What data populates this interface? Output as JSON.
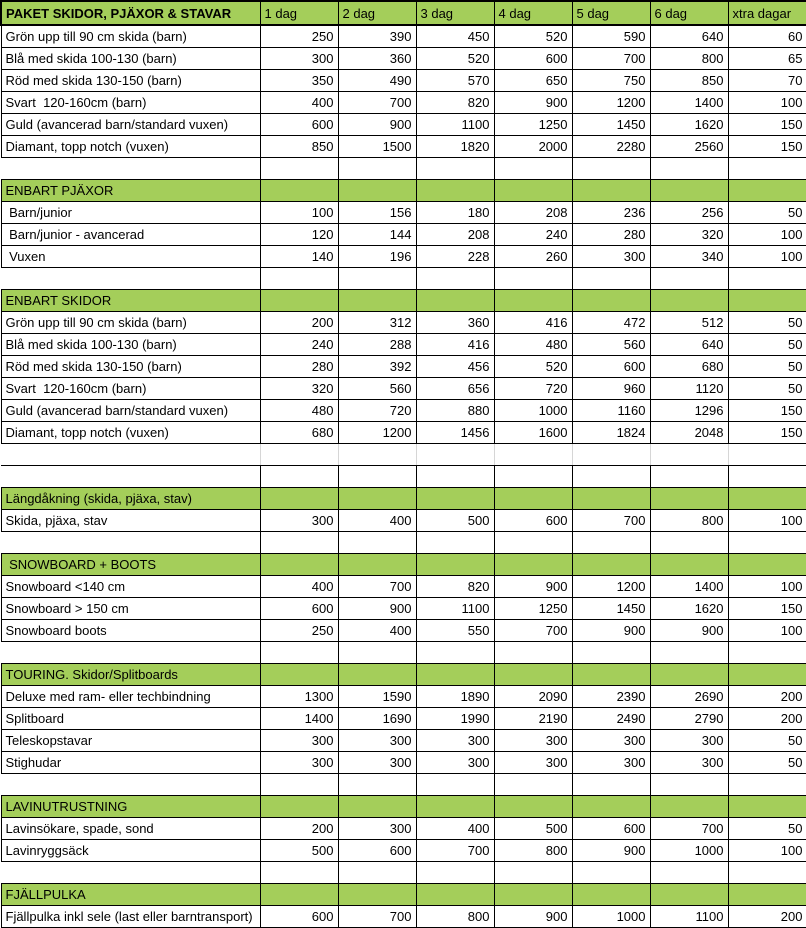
{
  "colors": {
    "section_green": "#a4ce5a",
    "gridline_gray": "#d6d6d6",
    "border_black": "#000000",
    "background": "#ffffff"
  },
  "header": {
    "title": "PAKET SKIDOR, PJÄXOR & STAVAR",
    "day_columns": [
      "1 dag",
      "2 dag",
      "3 dag",
      "4 dag",
      "5 dag",
      "6 dag",
      "xtra dagar"
    ]
  },
  "rows": [
    {
      "type": "item",
      "label": "Grön upp till 90 cm skida (barn)",
      "values": [
        "250",
        "390",
        "450",
        "520",
        "590",
        "640",
        "60"
      ]
    },
    {
      "type": "item",
      "label": "Blå med skida 100-130 (barn)",
      "values": [
        "300",
        "360",
        "520",
        "600",
        "700",
        "800",
        "65"
      ]
    },
    {
      "type": "item",
      "label": "Röd med skida 130-150 (barn)",
      "values": [
        "350",
        "490",
        "570",
        "650",
        "750",
        "850",
        "70"
      ]
    },
    {
      "type": "item",
      "label": "Svart  120-160cm (barn)",
      "values": [
        "400",
        "700",
        "820",
        "900",
        "1200",
        "1400",
        "100"
      ]
    },
    {
      "type": "item",
      "label": "Guld (avancerad barn/standard vuxen)",
      "values": [
        "600",
        "900",
        "1100",
        "1250",
        "1450",
        "1620",
        "150"
      ]
    },
    {
      "type": "item",
      "label": "Diamant, topp notch (vuxen)",
      "values": [
        "850",
        "1500",
        "1820",
        "2000",
        "2280",
        "2560",
        "150"
      ]
    },
    {
      "type": "empty"
    },
    {
      "type": "section",
      "label": "ENBART PJÄXOR"
    },
    {
      "type": "item",
      "label": " Barn/junior",
      "values": [
        "100",
        "156",
        "180",
        "208",
        "236",
        "256",
        "50"
      ]
    },
    {
      "type": "item",
      "label": " Barn/junior - avancerad",
      "values": [
        "120",
        "144",
        "208",
        "240",
        "280",
        "320",
        "100"
      ]
    },
    {
      "type": "item",
      "label": " Vuxen",
      "values": [
        "140",
        "196",
        "228",
        "260",
        "300",
        "340",
        "100"
      ]
    },
    {
      "type": "empty"
    },
    {
      "type": "section",
      "label": "ENBART SKIDOR"
    },
    {
      "type": "item",
      "label": "Grön upp till 90 cm skida (barn)",
      "values": [
        "200",
        "312",
        "360",
        "416",
        "472",
        "512",
        "50"
      ]
    },
    {
      "type": "item",
      "label": "Blå med skida 100-130 (barn)",
      "values": [
        "240",
        "288",
        "416",
        "480",
        "560",
        "640",
        "50"
      ]
    },
    {
      "type": "item",
      "label": "Röd med skida 130-150 (barn)",
      "values": [
        "280",
        "392",
        "456",
        "520",
        "600",
        "680",
        "50"
      ]
    },
    {
      "type": "item",
      "label": "Svart  120-160cm (barn)",
      "values": [
        "320",
        "560",
        "656",
        "720",
        "960",
        "1120",
        "50"
      ]
    },
    {
      "type": "item",
      "label": "Guld (avancerad barn/standard vuxen)",
      "values": [
        "480",
        "720",
        "880",
        "1000",
        "1160",
        "1296",
        "150"
      ]
    },
    {
      "type": "item",
      "label": "Diamant, topp notch (vuxen)",
      "values": [
        "680",
        "1200",
        "1456",
        "1600",
        "1824",
        "2048",
        "150"
      ]
    },
    {
      "type": "gap"
    },
    {
      "type": "empty"
    },
    {
      "type": "section",
      "label": "Längdåkning (skida, pjäxa, stav)"
    },
    {
      "type": "item",
      "label": "Skida, pjäxa, stav",
      "values": [
        "300",
        "400",
        "500",
        "600",
        "700",
        "800",
        "100"
      ]
    },
    {
      "type": "empty"
    },
    {
      "type": "section",
      "label": " SNOWBOARD + BOOTS"
    },
    {
      "type": "item",
      "label": "Snowboard <140 cm",
      "values": [
        "400",
        "700",
        "820",
        "900",
        "1200",
        "1400",
        "100"
      ]
    },
    {
      "type": "item",
      "label": "Snowboard > 150 cm",
      "values": [
        "600",
        "900",
        "1100",
        "1250",
        "1450",
        "1620",
        "150"
      ]
    },
    {
      "type": "item",
      "label": "Snowboard boots",
      "values": [
        "250",
        "400",
        "550",
        "700",
        "900",
        "900",
        "100"
      ]
    },
    {
      "type": "empty"
    },
    {
      "type": "section",
      "label": "TOURING. Skidor/Splitboards"
    },
    {
      "type": "item",
      "label": "Deluxe med ram- eller techbindning",
      "values": [
        "1300",
        "1590",
        "1890",
        "2090",
        "2390",
        "2690",
        "200"
      ]
    },
    {
      "type": "item",
      "label": "Splitboard",
      "values": [
        "1400",
        "1690",
        "1990",
        "2190",
        "2490",
        "2790",
        "200"
      ]
    },
    {
      "type": "item",
      "label": "Teleskopstavar",
      "values": [
        "300",
        "300",
        "300",
        "300",
        "300",
        "300",
        "50"
      ]
    },
    {
      "type": "item",
      "label": "Stighudar",
      "values": [
        "300",
        "300",
        "300",
        "300",
        "300",
        "300",
        "50"
      ]
    },
    {
      "type": "empty"
    },
    {
      "type": "section",
      "label": "LAVINUTRUSTNING"
    },
    {
      "type": "item",
      "label": "Lavinsökare, spade, sond",
      "values": [
        "200",
        "300",
        "400",
        "500",
        "600",
        "700",
        "50"
      ]
    },
    {
      "type": "item",
      "label": "Lavinryggsäck",
      "values": [
        "500",
        "600",
        "700",
        "800",
        "900",
        "1000",
        "100"
      ]
    },
    {
      "type": "empty"
    },
    {
      "type": "section",
      "label": "FJÄLLPULKA"
    },
    {
      "type": "item",
      "label": "Fjällpulka inkl sele (last eller barntransport)",
      "values": [
        "600",
        "700",
        "800",
        "900",
        "1000",
        "1100",
        "200"
      ]
    }
  ]
}
